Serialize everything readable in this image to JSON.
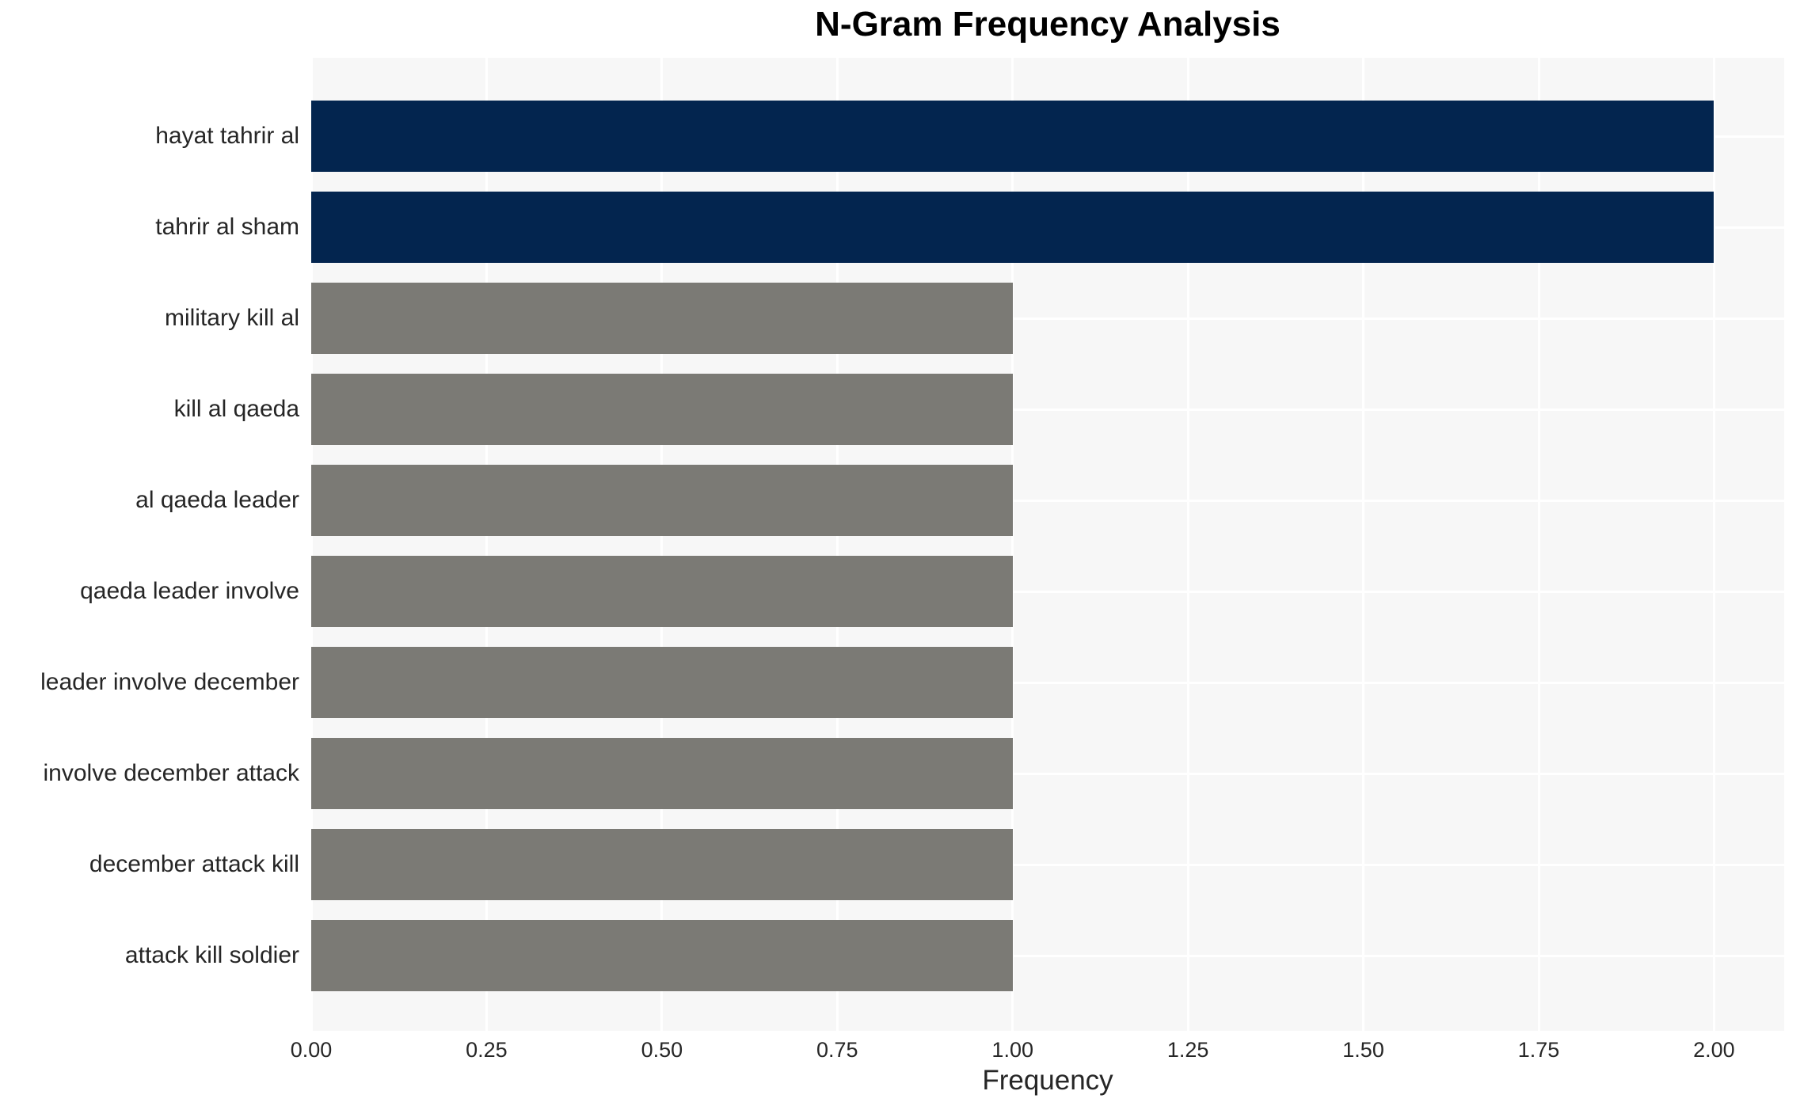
{
  "chart_data": {
    "type": "bar",
    "orientation": "horizontal",
    "title": "N-Gram Frequency Analysis",
    "xlabel": "Frequency",
    "ylabel": "",
    "categories": [
      "hayat tahrir al",
      "tahrir al sham",
      "military kill al",
      "kill al qaeda",
      "al qaeda leader",
      "qaeda leader involve",
      "leader involve december",
      "involve december attack",
      "december attack kill",
      "attack kill soldier"
    ],
    "values": [
      2,
      2,
      1,
      1,
      1,
      1,
      1,
      1,
      1,
      1
    ],
    "bar_colors": [
      "#03254f",
      "#03254f",
      "#7b7a75",
      "#7b7a75",
      "#7b7a75",
      "#7b7a75",
      "#7b7a75",
      "#7b7a75",
      "#7b7a75",
      "#7b7a75"
    ],
    "xlim": [
      0,
      2.1
    ],
    "x_ticks": [
      {
        "value": 0.0,
        "label": "0.00"
      },
      {
        "value": 0.25,
        "label": "0.25"
      },
      {
        "value": 0.5,
        "label": "0.50"
      },
      {
        "value": 0.75,
        "label": "0.75"
      },
      {
        "value": 1.0,
        "label": "1.00"
      },
      {
        "value": 1.25,
        "label": "1.25"
      },
      {
        "value": 1.5,
        "label": "1.50"
      },
      {
        "value": 1.75,
        "label": "1.75"
      },
      {
        "value": 2.0,
        "label": "2.00"
      }
    ],
    "grid": "on",
    "legend": "none",
    "colors": {
      "highlight_bar": "#03254f",
      "default_bar": "#7b7a75",
      "plot_background": "#f7f7f7",
      "gridline": "#ffffff",
      "tick_text": "#262626",
      "title_text": "#000000"
    }
  }
}
